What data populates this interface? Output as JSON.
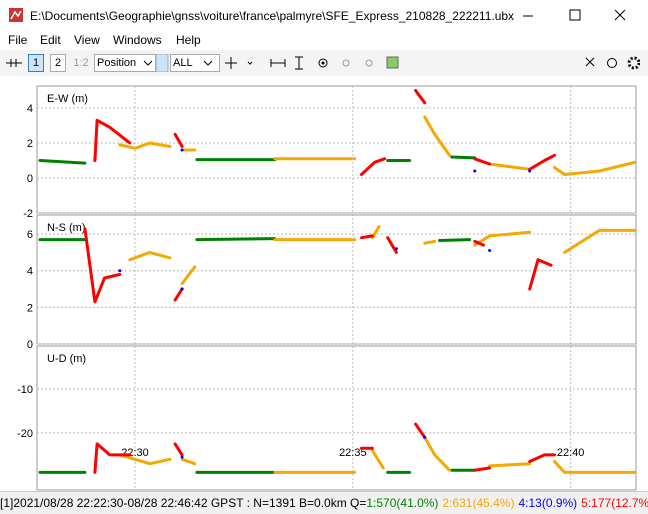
{
  "window": {
    "title": "E:\\Documents\\Geographie\\gnss\\voiture\\france\\palmyre\\SFE_Express_210828_222211.ubx"
  },
  "menu": [
    "File",
    "Edit",
    "View",
    "Windows",
    "Help"
  ],
  "toolbar": {
    "buttons": [
      "1",
      "2",
      "1:2"
    ],
    "plot_type": "Position",
    "quality": "ALL"
  },
  "status": {
    "text": "[1]2021/08/28 22:22:30-08/28 22:46:42 GPST : N=1391 B=0.0km Q=",
    "parts": [
      {
        "text": "1:570(41.0%)",
        "color": "#008000"
      },
      {
        "text": "2:631(45.4%)",
        "color": "#f5a800"
      },
      {
        "text": "4:13(0.9%)",
        "color": "#0000ff"
      },
      {
        "text": "5:177(12.7%)",
        "color": "#ff0000"
      }
    ]
  },
  "chart_data": [
    {
      "type": "line",
      "ylabel": "E-W (m)",
      "xlim": [
        1347.75,
        1361.5
      ],
      "ylim": [
        -2,
        5.26
      ],
      "yticks": [
        -2,
        0,
        2,
        4
      ],
      "grid": true,
      "series": [
        {
          "color": "#008000",
          "x": [
            1347.82,
            1348.85,
            null,
            1351.42,
            1353.21,
            null,
            1355.8,
            1356.3,
            null,
            1357.27,
            1357.8
          ],
          "values": [
            1.0,
            0.85,
            null,
            1.05,
            1.05,
            null,
            1.0,
            1.0,
            null,
            1.2,
            1.15
          ]
        },
        {
          "color": "#f5a800",
          "x": [
            1349.65,
            1350.0,
            1350.34,
            1350.8,
            null,
            1351.08,
            1351.37,
            null,
            1353.21,
            1355.04,
            null,
            1356.65,
            1356.88,
            1357.22,
            null,
            1358.14,
            1359.06,
            null,
            1359.63,
            1359.86,
            1360.66,
            1361.47
          ],
          "values": [
            1.9,
            1.7,
            2.0,
            1.8,
            null,
            1.6,
            1.6,
            null,
            1.1,
            1.1,
            null,
            3.5,
            2.5,
            1.3,
            null,
            0.8,
            0.5,
            null,
            0.6,
            0.2,
            0.4,
            0.9
          ]
        },
        {
          "color": "#ff0000",
          "x": [
            1349.08,
            1349.13,
            1349.42,
            1349.88,
            null,
            1350.92,
            1351.08,
            null,
            1355.2,
            1355.5,
            1355.73,
            null,
            1356.44,
            1356.65,
            null,
            1357.8,
            1358.14,
            null,
            1359.06,
            1359.4,
            1359.63
          ],
          "values": [
            1.0,
            3.3,
            2.9,
            2.0,
            null,
            2.5,
            1.8,
            null,
            0.2,
            0.9,
            1.1,
            null,
            5.0,
            4.3,
            null,
            1.1,
            0.8,
            null,
            0.5,
            1.0,
            1.3
          ]
        },
        {
          "color": "#0000ff",
          "x": [
            1351.08,
            null,
            1357.8,
            null,
            1359.06
          ],
          "values": [
            1.6,
            null,
            0.4,
            null,
            0.4
          ]
        }
      ]
    },
    {
      "type": "line",
      "ylabel": "N-S (m)",
      "xlim": [
        1347.75,
        1361.5
      ],
      "ylim": [
        0,
        7.04
      ],
      "yticks": [
        0,
        2,
        4,
        6
      ],
      "grid": true,
      "series": [
        {
          "color": "#008000",
          "x": [
            1347.82,
            1348.85,
            null,
            1351.42,
            1353.21,
            null,
            1356.99,
            1357.68
          ],
          "values": [
            5.7,
            5.7,
            null,
            5.7,
            5.75,
            null,
            5.65,
            5.7
          ]
        },
        {
          "color": "#f5a800",
          "x": [
            1349.88,
            1350.34,
            1350.8,
            null,
            1351.08,
            1351.37,
            null,
            1353.21,
            1355.04,
            null,
            1355.45,
            1355.6,
            null,
            1356.65,
            1356.88,
            null,
            1357.8,
            1358.14,
            1359.06,
            null,
            1359.86,
            1360.66,
            1361.47
          ],
          "values": [
            4.6,
            5.0,
            4.7,
            null,
            3.3,
            4.2,
            null,
            5.7,
            5.7,
            null,
            5.8,
            6.4,
            null,
            5.5,
            5.6,
            null,
            5.4,
            5.9,
            6.1,
            null,
            5.0,
            6.2,
            6.2
          ]
        },
        {
          "color": "#ff0000",
          "x": [
            1348.85,
            1349.08,
            1349.3,
            1349.65,
            null,
            1350.92,
            1351.08,
            null,
            1355.2,
            1355.45,
            null,
            1355.8,
            1356.0,
            null,
            1357.8,
            1358.0,
            null,
            1359.06,
            1359.25,
            1359.55
          ],
          "values": [
            6.3,
            2.3,
            3.6,
            3.8,
            null,
            2.4,
            3.0,
            null,
            5.8,
            5.9,
            null,
            5.8,
            5.0,
            null,
            5.6,
            5.4,
            null,
            3.0,
            4.6,
            4.3
          ]
        },
        {
          "color": "#0000ff",
          "x": [
            1349.65,
            null,
            1351.08,
            null,
            1356.0,
            null,
            1358.14
          ],
          "values": [
            4.0,
            null,
            3.0,
            null,
            5.2,
            null,
            5.1
          ]
        }
      ]
    },
    {
      "type": "line",
      "ylabel": "U-D (m)",
      "xlim": [
        1347.75,
        1361.5
      ],
      "ylim": [
        -33,
        -0.2
      ],
      "yticks": [
        -20,
        -10
      ],
      "grid": true,
      "xticks": [
        {
          "value": 1350,
          "label": "22:30"
        },
        {
          "value": 1355,
          "label": "22:35"
        },
        {
          "value": 1360,
          "label": "22:40"
        }
      ],
      "series": [
        {
          "color": "#008000",
          "x": [
            1347.82,
            1348.85,
            null,
            1351.42,
            1353.21,
            null,
            1355.8,
            1356.3,
            null,
            1357.27,
            1357.8
          ],
          "values": [
            -29,
            -29,
            null,
            -29,
            -29,
            null,
            -29,
            -29,
            null,
            -28.5,
            -28.5
          ]
        },
        {
          "color": "#f5a800",
          "x": [
            1349.65,
            1350.0,
            1350.34,
            1350.8,
            null,
            1351.08,
            1351.37,
            null,
            1353.21,
            1355.04,
            null,
            1355.45,
            1355.7,
            null,
            1356.65,
            1356.88,
            1357.22,
            null,
            1358.14,
            1359.06,
            null,
            1359.63,
            1359.86,
            1361.47
          ],
          "values": [
            -25,
            -26,
            -27,
            -26,
            null,
            -26,
            -27,
            null,
            -29,
            -29,
            null,
            -24,
            -28,
            null,
            -21,
            -25,
            -28.5,
            null,
            -27.5,
            -27,
            null,
            -26.5,
            -29,
            -29
          ]
        },
        {
          "color": "#ff0000",
          "x": [
            1349.08,
            1349.13,
            1349.42,
            1349.88,
            null,
            1350.92,
            1351.08,
            null,
            1355.2,
            1355.45,
            null,
            1356.44,
            1356.65,
            null,
            1357.8,
            1358.14,
            null,
            1359.06,
            1359.4,
            1359.63
          ],
          "values": [
            -29,
            -22.5,
            -25,
            -25,
            null,
            -22.5,
            -25,
            null,
            -23.5,
            -23.5,
            null,
            -18,
            -21,
            null,
            -28.5,
            -28,
            null,
            -26.5,
            -25,
            -25
          ]
        },
        {
          "color": "#0000ff",
          "x": [
            1351.08,
            null,
            1356.65
          ],
          "values": [
            -25.5,
            null,
            -21
          ]
        }
      ]
    }
  ]
}
